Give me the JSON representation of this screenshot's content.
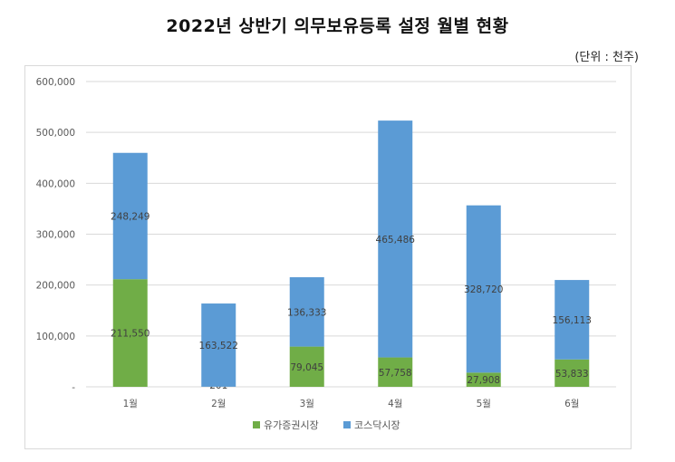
{
  "title": "2022년 상반기 의무보유등록 설정 월별 현황",
  "unit_note": "(단위 : 천주)",
  "chart_data": {
    "type": "bar",
    "stacked": true,
    "categories": [
      "1월",
      "2월",
      "3월",
      "4월",
      "5월",
      "6월"
    ],
    "series": [
      {
        "name": "유가증권시장",
        "color": "#70ad47",
        "values": [
          211550,
          201,
          79045,
          57758,
          27908,
          53833
        ],
        "labels": [
          "211,550",
          "201",
          "79,045",
          "57,758",
          "27,908",
          "53,833"
        ]
      },
      {
        "name": "코스닥시장",
        "color": "#5b9bd5",
        "values": [
          248249,
          163522,
          136333,
          465486,
          328720,
          156113
        ],
        "labels": [
          "248,249",
          "163,522",
          "136,333",
          "465,486",
          "328,720",
          "156,113"
        ]
      }
    ],
    "ylim": [
      0,
      600000
    ],
    "yticks": [
      0,
      100000,
      200000,
      300000,
      400000,
      500000,
      600000
    ],
    "ytick_labels": [
      "-",
      "100,000",
      "200,000",
      "300,000",
      "400,000",
      "500,000",
      "600,000"
    ],
    "grid": true,
    "legend_position": "bottom"
  }
}
